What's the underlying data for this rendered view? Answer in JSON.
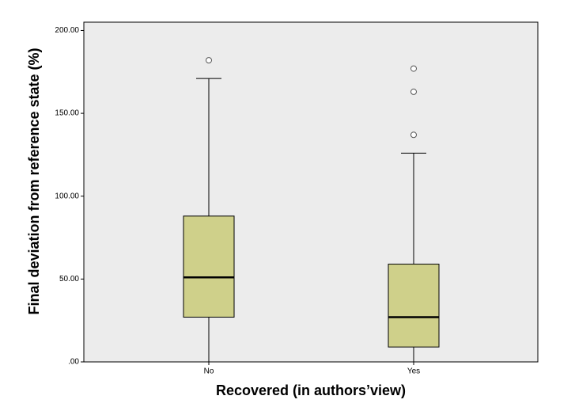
{
  "chart_data": {
    "type": "box",
    "x_label": "Recovered (in authors’view)",
    "y_label": "Final deviation from reference state (%)",
    "categories": [
      "No",
      "Yes"
    ],
    "color": "#cfd08a",
    "boxes": [
      {
        "min": 0,
        "q1": 27,
        "median": 51,
        "q3": 88,
        "max": 171,
        "outliers": [
          182
        ]
      },
      {
        "min": 0,
        "q1": 9,
        "median": 27,
        "q3": 59,
        "max": 126,
        "outliers": [
          177,
          163,
          137
        ]
      }
    ],
    "ylim": [
      0,
      205
    ],
    "yticks": [
      {
        "value": 0,
        "label": ".00"
      },
      {
        "value": 50,
        "label": "50.00"
      },
      {
        "value": 100,
        "label": "100.00"
      },
      {
        "value": 150,
        "label": "150.00"
      },
      {
        "value": 200,
        "label": "200.00"
      }
    ],
    "grid": false
  }
}
